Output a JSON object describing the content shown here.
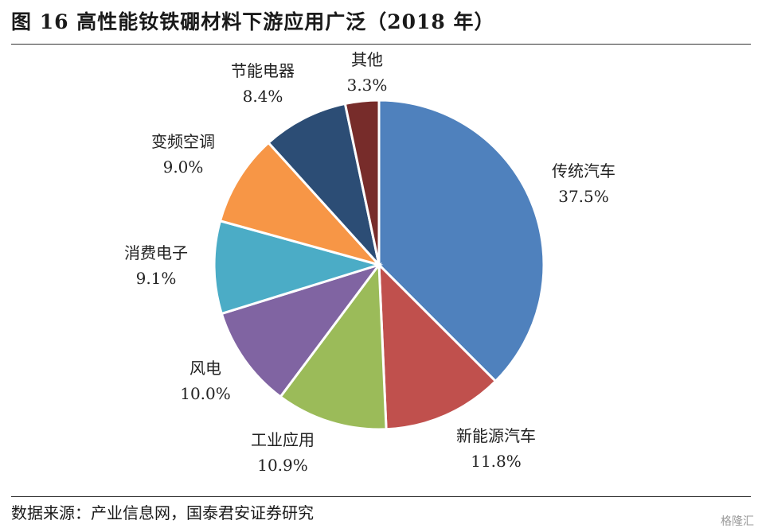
{
  "title": "图 16 高性能钕铁硼材料下游应用广泛（2018 年）",
  "source": "数据来源：产业信息网，国泰君安证券研究",
  "watermark": "格隆汇",
  "chart_data": {
    "type": "pie",
    "start_angle_deg": 0,
    "direction": "clockwise",
    "slices": [
      {
        "label": "传统汽车",
        "value": 37.5,
        "display": "37.5%",
        "color": "#4f81bd"
      },
      {
        "label": "新能源汽车",
        "value": 11.8,
        "display": "11.8%",
        "color": "#c0504d"
      },
      {
        "label": "工业应用",
        "value": 10.9,
        "display": "10.9%",
        "color": "#9bbb59"
      },
      {
        "label": "风电",
        "value": 10.0,
        "display": "10.0%",
        "color": "#8064a2"
      },
      {
        "label": "消费电子",
        "value": 9.1,
        "display": "9.1%",
        "color": "#4bacc6"
      },
      {
        "label": "变频空调",
        "value": 9.0,
        "display": "9.0%",
        "color": "#f79646"
      },
      {
        "label": "节能电器",
        "value": 8.4,
        "display": "8.4%",
        "color": "#2c4d75"
      },
      {
        "label": "其他",
        "value": 3.3,
        "display": "3.3%",
        "color": "#772c2a"
      }
    ]
  }
}
